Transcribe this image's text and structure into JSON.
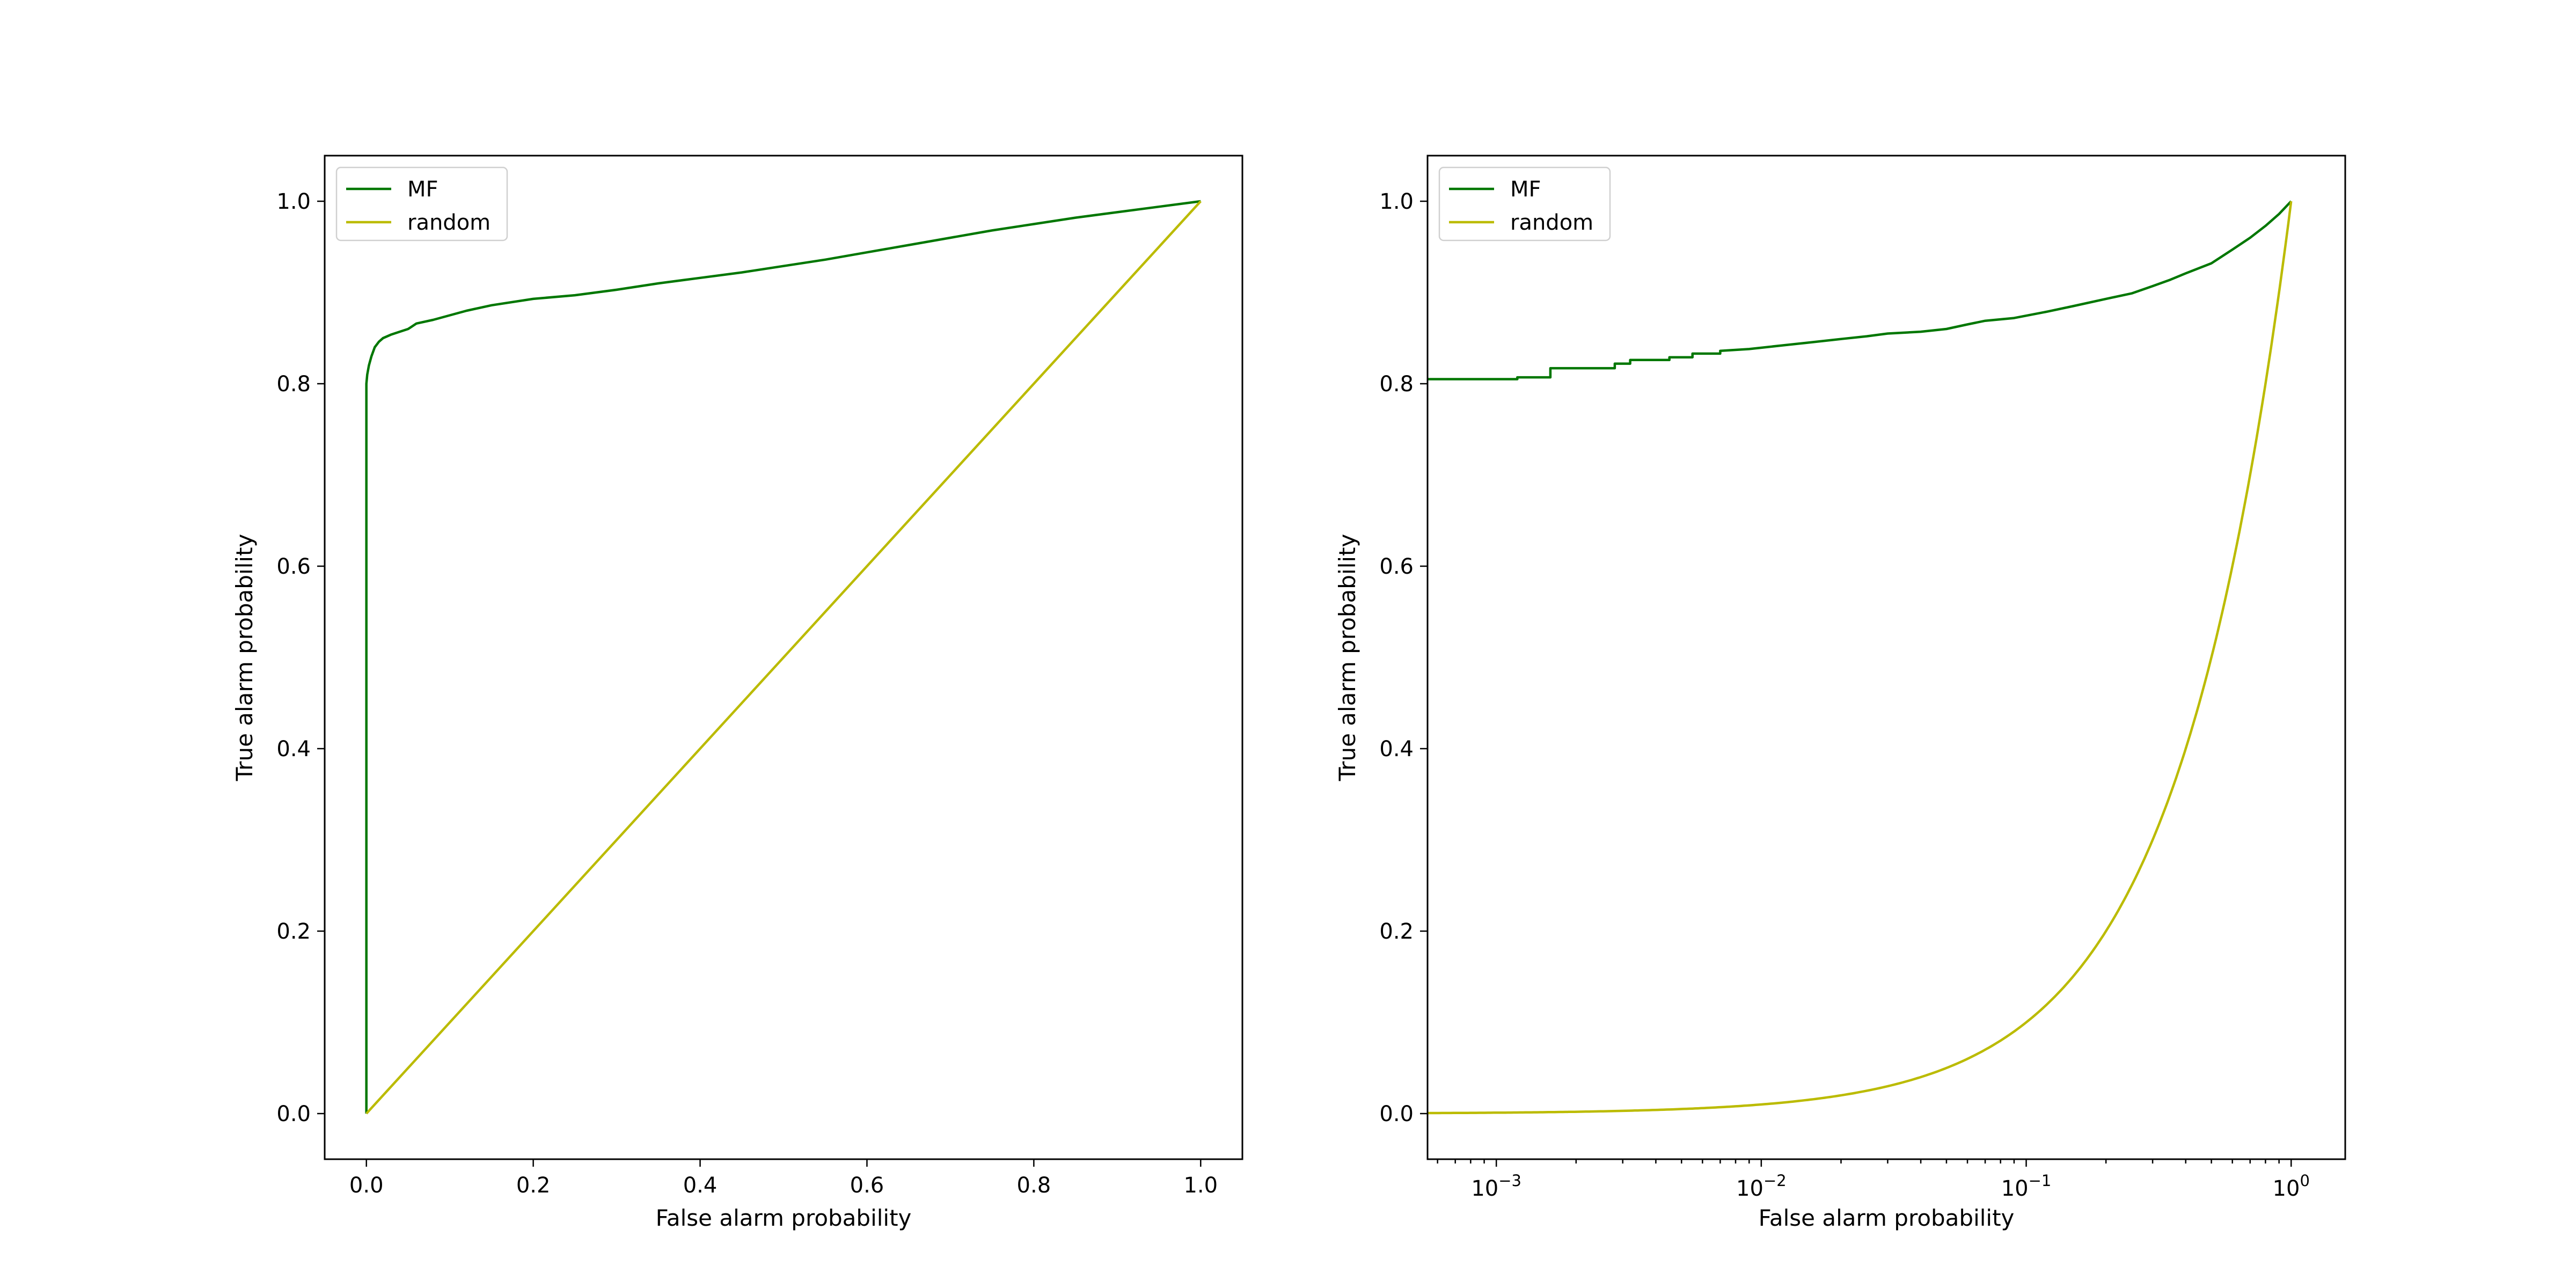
{
  "colors": {
    "mf": "#007700",
    "random": "#bbbb00"
  },
  "chart_data": [
    {
      "type": "line",
      "title": "",
      "xlabel": "False alarm probability",
      "ylabel": "True alarm probability",
      "xscale": "linear",
      "xlim": [
        -0.05,
        1.05
      ],
      "ylim": [
        -0.05,
        1.05
      ],
      "x_ticks": [
        0.0,
        0.2,
        0.4,
        0.6,
        0.8,
        1.0
      ],
      "x_tick_labels": [
        "0.0",
        "0.2",
        "0.4",
        "0.6",
        "0.8",
        "1.0"
      ],
      "y_ticks": [
        0.0,
        0.2,
        0.4,
        0.6,
        0.8,
        1.0
      ],
      "y_tick_labels": [
        "0.0",
        "0.2",
        "0.4",
        "0.6",
        "0.8",
        "1.0"
      ],
      "grid": false,
      "legend": "upper-left",
      "series": [
        {
          "name": "MF",
          "color": "#007700",
          "points": [
            [
              0.0,
              0.0
            ],
            [
              0.0,
              0.8
            ],
            [
              0.001,
              0.81
            ],
            [
              0.003,
              0.82
            ],
            [
              0.006,
              0.83
            ],
            [
              0.01,
              0.84
            ],
            [
              0.015,
              0.846
            ],
            [
              0.02,
              0.85
            ],
            [
              0.03,
              0.854
            ],
            [
              0.04,
              0.857
            ],
            [
              0.05,
              0.86
            ],
            [
              0.06,
              0.866
            ],
            [
              0.08,
              0.87
            ],
            [
              0.1,
              0.875
            ],
            [
              0.12,
              0.88
            ],
            [
              0.15,
              0.886
            ],
            [
              0.2,
              0.893
            ],
            [
              0.25,
              0.897
            ],
            [
              0.3,
              0.903
            ],
            [
              0.35,
              0.91
            ],
            [
              0.4,
              0.916
            ],
            [
              0.45,
              0.922
            ],
            [
              0.5,
              0.929
            ],
            [
              0.55,
              0.936
            ],
            [
              0.6,
              0.944
            ],
            [
              0.65,
              0.952
            ],
            [
              0.7,
              0.96
            ],
            [
              0.75,
              0.968
            ],
            [
              0.8,
              0.975
            ],
            [
              0.85,
              0.982
            ],
            [
              0.9,
              0.988
            ],
            [
              0.95,
              0.994
            ],
            [
              1.0,
              1.0
            ]
          ]
        },
        {
          "name": "random",
          "color": "#bbbb00",
          "points": [
            [
              0.0,
              0.0
            ],
            [
              1.0,
              1.0
            ]
          ]
        }
      ]
    },
    {
      "type": "line",
      "title": "",
      "xlabel": "False alarm probability",
      "ylabel": "True alarm probability",
      "xscale": "log",
      "xlim": [
        0.00055,
        1.6
      ],
      "ylim": [
        -0.05,
        1.05
      ],
      "x_ticks": [
        0.001,
        0.01,
        0.1,
        1
      ],
      "x_tick_labels": [
        {
          "base": "10",
          "exp": "−3"
        },
        {
          "base": "10",
          "exp": "−2"
        },
        {
          "base": "10",
          "exp": "−1"
        },
        {
          "base": "10",
          "exp": "0"
        }
      ],
      "y_ticks": [
        0.0,
        0.2,
        0.4,
        0.6,
        0.8,
        1.0
      ],
      "y_tick_labels": [
        "0.0",
        "0.2",
        "0.4",
        "0.6",
        "0.8",
        "1.0"
      ],
      "grid": false,
      "legend": "upper-left",
      "series": [
        {
          "name": "MF",
          "color": "#007700",
          "points": [
            [
              0.00055,
              0.805
            ],
            [
              0.0012,
              0.805
            ],
            [
              0.0012,
              0.807
            ],
            [
              0.0016,
              0.807
            ],
            [
              0.0016,
              0.817
            ],
            [
              0.0028,
              0.817
            ],
            [
              0.0028,
              0.822
            ],
            [
              0.0032,
              0.822
            ],
            [
              0.0032,
              0.826
            ],
            [
              0.0045,
              0.826
            ],
            [
              0.0045,
              0.829
            ],
            [
              0.0055,
              0.829
            ],
            [
              0.0055,
              0.833
            ],
            [
              0.007,
              0.833
            ],
            [
              0.007,
              0.836
            ],
            [
              0.009,
              0.838
            ],
            [
              0.012,
              0.842
            ],
            [
              0.015,
              0.845
            ],
            [
              0.02,
              0.849
            ],
            [
              0.025,
              0.852
            ],
            [
              0.03,
              0.855
            ],
            [
              0.04,
              0.857
            ],
            [
              0.05,
              0.86
            ],
            [
              0.06,
              0.865
            ],
            [
              0.07,
              0.869
            ],
            [
              0.09,
              0.872
            ],
            [
              0.12,
              0.879
            ],
            [
              0.15,
              0.885
            ],
            [
              0.2,
              0.893
            ],
            [
              0.25,
              0.899
            ],
            [
              0.3,
              0.907
            ],
            [
              0.35,
              0.914
            ],
            [
              0.4,
              0.921
            ],
            [
              0.5,
              0.932
            ],
            [
              0.6,
              0.947
            ],
            [
              0.7,
              0.96
            ],
            [
              0.8,
              0.973
            ],
            [
              0.9,
              0.986
            ],
            [
              1.0,
              1.0
            ]
          ]
        },
        {
          "name": "random",
          "color": "#bbbb00",
          "points": [
            [
              0.00055,
              0.00055
            ],
            [
              1.0,
              1.0
            ]
          ],
          "curve": "identity"
        }
      ]
    }
  ]
}
